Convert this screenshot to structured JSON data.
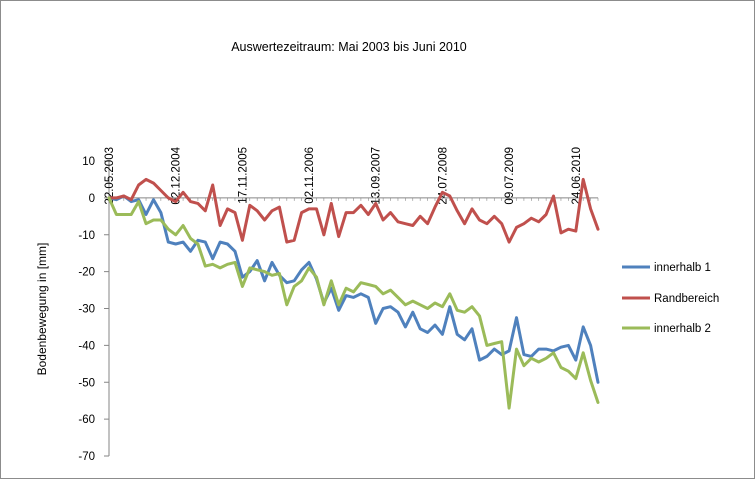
{
  "chart_data": {
    "type": "line",
    "title": "Auswertezeitraum:  Mai 2003  bis Juni  2010",
    "ylabel": "Bodenbewegung   in [mm]",
    "xlabel": "",
    "ylim": [
      -70,
      10
    ],
    "yticks": [
      10,
      0,
      -10,
      -20,
      -30,
      -40,
      -50,
      -60,
      -70
    ],
    "grid": false,
    "legend_position": "right",
    "x_tick_labels": [
      "22.05.2003",
      "02.12.2004",
      "17.11.2005",
      "02.11.2006",
      "13.09.2007",
      "24.07.2008",
      "09.07.2009",
      "24.06.2010"
    ],
    "x_tick_positions": [
      0,
      9,
      18,
      27,
      36,
      45,
      54,
      63
    ],
    "series": [
      {
        "name": "innerhalb 1",
        "color": "#4f81bd",
        "values": [
          0,
          -0.5,
          0.5,
          -1,
          -0.5,
          -4.5,
          -0.5,
          -4,
          -12,
          -12.5,
          -12,
          -14.5,
          -11.5,
          -12,
          -16.5,
          -12,
          -12.5,
          -14.5,
          -21.5,
          -20,
          -17,
          -22.5,
          -17.5,
          -21,
          -23,
          -22.5,
          -19.5,
          -17.5,
          -22,
          -28.5,
          -24.5,
          -30.5,
          -26.5,
          -27,
          -26,
          -27,
          -34,
          -30,
          -29.5,
          -31,
          -35,
          -31,
          -35.5,
          -36.5,
          -34.5,
          -37,
          -29.5,
          -37,
          -38.5,
          -35.5,
          -44,
          -43,
          -41,
          -42.5,
          -41.5,
          -32.5,
          -42.5,
          -43,
          -41,
          -41,
          -41.5,
          -40.5,
          -40,
          -44,
          -35,
          -40,
          -50
        ]
      },
      {
        "name": "Randbereich",
        "color": "#c0504d",
        "values": [
          0,
          0,
          0.5,
          -0.5,
          3.5,
          5,
          4,
          2,
          0,
          -1,
          1.5,
          -1,
          -1.5,
          -3.5,
          3.5,
          -7.5,
          -3,
          -4,
          -11.5,
          -2,
          -3.5,
          -6,
          -3.5,
          -2.5,
          -12,
          -11.5,
          -4,
          -3,
          -3,
          -10,
          -1.5,
          -10.5,
          -4,
          -4,
          -2,
          -4.5,
          -1.5,
          -6,
          -4,
          -6.5,
          -7,
          -7.5,
          -5,
          -7,
          -2.5,
          1.5,
          0.5,
          -3.5,
          -7,
          -3,
          -6,
          -7,
          -5,
          -7,
          -12,
          -8,
          -7,
          -5.5,
          -6.5,
          -4.5,
          0.5,
          -9.5,
          -8.5,
          -9,
          5,
          -3,
          -8.5
        ]
      },
      {
        "name": "innerhalb 2",
        "color": "#9bbb59",
        "values": [
          0,
          -4.5,
          -4.5,
          -4.5,
          -1,
          -7,
          -6,
          -6,
          -8.5,
          -10,
          -7.5,
          -11,
          -12.5,
          -18.5,
          -18,
          -19,
          -18,
          -17.5,
          -24,
          -19,
          -19.5,
          -20,
          -21,
          -20.5,
          -29,
          -24,
          -22.5,
          -19,
          -21.5,
          -29,
          -22.5,
          -29,
          -24.5,
          -25.5,
          -23,
          -23.5,
          -24,
          -26,
          -25,
          -27,
          -29,
          -28,
          -29,
          -30,
          -28.5,
          -29.5,
          -26,
          -30.5,
          -31,
          -29.5,
          -32,
          -40,
          -39.5,
          -39,
          -57,
          -41,
          -45.5,
          -43.5,
          -44.5,
          -43.5,
          -42,
          -46,
          -47,
          -49,
          -42,
          -49.5,
          -55.5
        ]
      }
    ]
  }
}
